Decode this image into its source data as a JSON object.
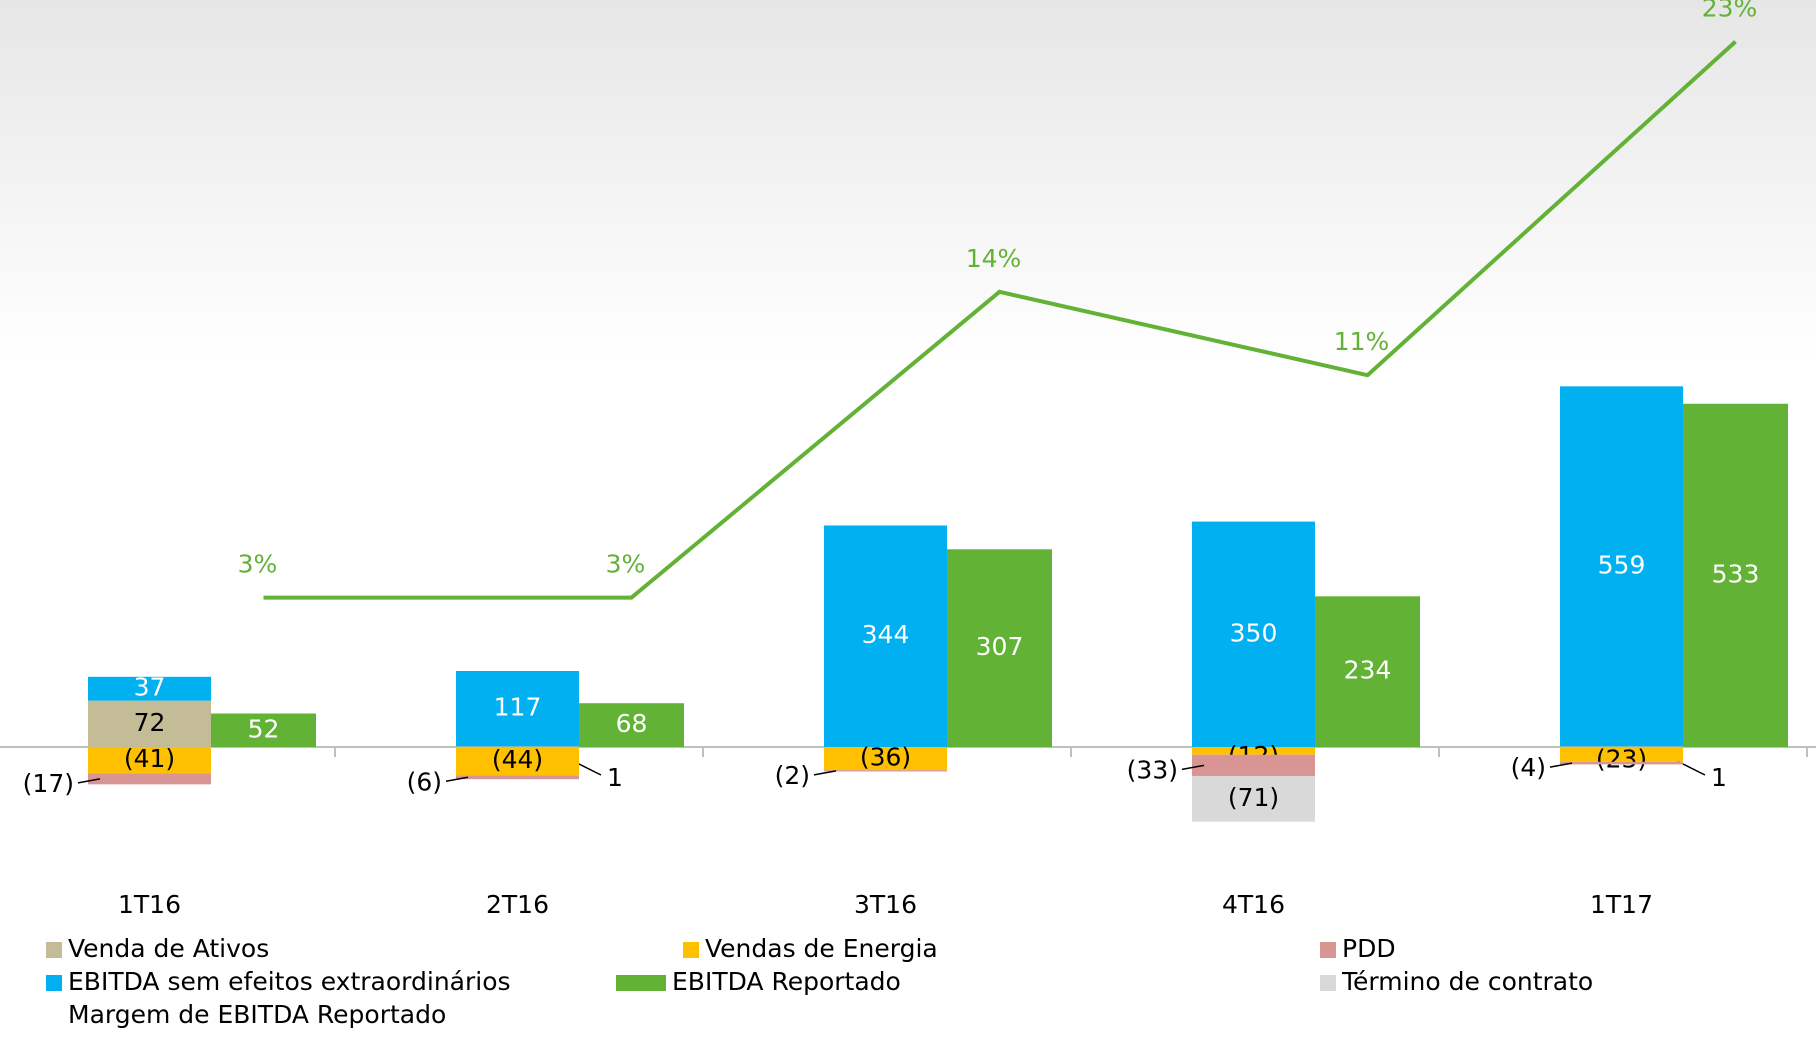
{
  "chart_data": {
    "type": "bar",
    "categories": [
      "1T16",
      "2T16",
      "3T16",
      "4T16",
      "1T17"
    ],
    "series": [
      {
        "name": "Venda de Ativos",
        "color": "#c4bc96",
        "values": [
          72,
          1,
          null,
          null,
          1
        ]
      },
      {
        "name": "Vendas de Energia",
        "color": "#ffc000",
        "values": [
          -41,
          -44,
          -36,
          -12,
          -23
        ],
        "value_labels": [
          "(41)",
          "(44)",
          "(36)",
          "(12)",
          "(23)"
        ]
      },
      {
        "name": "PDD",
        "color": "#d99594",
        "values": [
          -17,
          -6,
          -2,
          -33,
          -4
        ],
        "value_labels": [
          "(17)",
          "(6)",
          "(2)",
          "(33)",
          "(4)"
        ]
      },
      {
        "name": "EBITDA sem efeitos extraordinários",
        "color": "#00b0f0",
        "values": [
          37,
          117,
          344,
          350,
          559
        ]
      },
      {
        "name": "EBITDA Reportado",
        "color": "#62b236",
        "values": [
          52,
          68,
          307,
          234,
          533
        ]
      },
      {
        "name": "Término de contrato",
        "color": "#d9d9d9",
        "values": [
          null,
          null,
          null,
          -71,
          null
        ],
        "value_labels": [
          null,
          null,
          null,
          "(71)",
          null
        ]
      },
      {
        "name": "Margem de EBITDA Reportado",
        "color": "#62b236",
        "type": "line",
        "axis": "y2",
        "values": [
          3,
          3,
          14,
          11,
          23
        ],
        "value_labels": [
          "3%",
          "3%",
          "14%",
          "11%",
          "23%"
        ]
      }
    ]
  }
}
